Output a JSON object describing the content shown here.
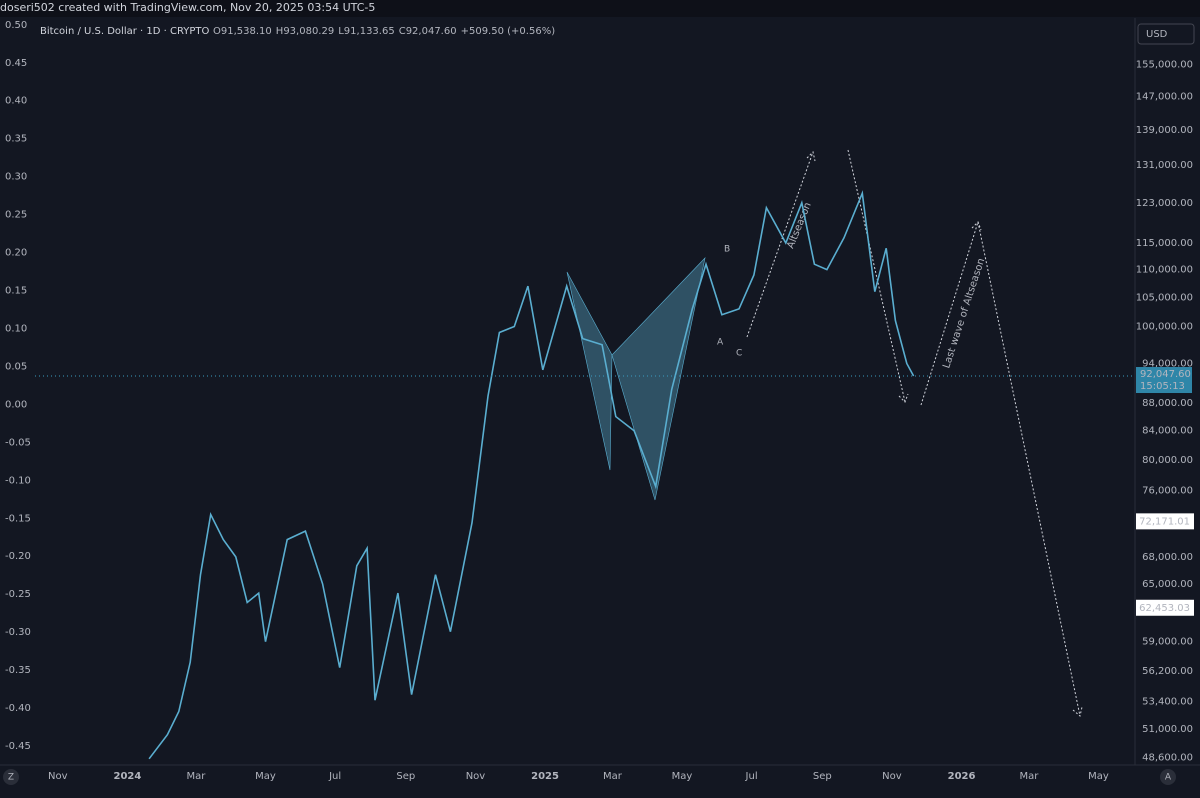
{
  "chart_data": {
    "type": "line",
    "credit": "doseri502 created with TradingView.com, Nov 20, 2025 03:54 UTC-5",
    "title": "Bitcoin / U.S. Dollar · 1D · CRYPTO",
    "ohlc": [
      {
        "name": "O",
        "value": "91,538.10"
      },
      {
        "name": "H",
        "value": "93,080.29"
      },
      {
        "name": "L",
        "value": "91,133.65"
      },
      {
        "name": "C",
        "value": "92,047.60"
      }
    ],
    "change": "+509.50 (+0.56%)",
    "currency": "USD",
    "log_scale": true,
    "x": [
      "2024-01-20",
      "2024-02-05",
      "2024-02-15",
      "2024-02-25",
      "2024-03-05",
      "2024-03-14",
      "2024-03-25",
      "2024-04-05",
      "2024-04-15",
      "2024-04-25",
      "2024-05-01",
      "2024-05-20",
      "2024-06-05",
      "2024-06-20",
      "2024-07-05",
      "2024-07-20",
      "2024-07-29",
      "2024-08-05",
      "2024-08-25",
      "2024-09-06",
      "2024-09-27",
      "2024-10-10",
      "2024-10-29",
      "2024-11-12",
      "2024-11-22",
      "2024-12-05",
      "2024-12-17",
      "2024-12-30",
      "2025-01-20",
      "2025-02-03",
      "2025-02-20",
      "2025-03-04",
      "2025-03-20",
      "2025-04-08",
      "2025-04-22",
      "2025-05-10",
      "2025-05-22",
      "2025-06-05",
      "2025-06-20",
      "2025-07-03",
      "2025-07-14",
      "2025-07-31",
      "2025-08-14",
      "2025-08-25",
      "2025-09-05",
      "2025-09-20",
      "2025-10-06",
      "2025-10-17",
      "2025-10-27",
      "2025-11-04",
      "2025-11-14",
      "2025-11-20"
    ],
    "series": [
      {
        "name": "Bitcoin / U.S. Dollar",
        "color": "#5aaed0",
        "values": [
          48500,
          50500,
          52500,
          57000,
          66000,
          73000,
          70000,
          68000,
          63000,
          64000,
          59000,
          70000,
          71000,
          65000,
          56500,
          67000,
          69000,
          53500,
          64000,
          54000,
          66000,
          60000,
          72000,
          89000,
          99000,
          100000,
          107000,
          93000,
          107000,
          98000,
          97000,
          86000,
          84000,
          76500,
          90000,
          103000,
          111000,
          102000,
          103000,
          109000,
          122000,
          115000,
          123000,
          111000,
          110000,
          116000,
          125000,
          106000,
          114000,
          101000,
          94000,
          92047.6
        ]
      }
    ],
    "last_price": {
      "value": 92047.6,
      "label": "92,047.60"
    },
    "countdown": "15:05:13",
    "price_marks": [
      {
        "value": 72171.01,
        "label": "72,171.01"
      },
      {
        "value": 62453.03,
        "label": "62,453.03"
      }
    ],
    "xlim": [
      "2023-10-12",
      "2026-06-02"
    ],
    "xticks": [
      {
        "value": "2023-11-01",
        "label": "Nov"
      },
      {
        "value": "2024-01-01",
        "label": "2024"
      },
      {
        "value": "2024-03-01",
        "label": "Mar"
      },
      {
        "value": "2024-05-01",
        "label": "May"
      },
      {
        "value": "2024-07-01",
        "label": "Jul"
      },
      {
        "value": "2024-09-01",
        "label": "Sep"
      },
      {
        "value": "2024-11-01",
        "label": "Nov"
      },
      {
        "value": "2025-01-01",
        "label": "2025"
      },
      {
        "value": "2025-03-01",
        "label": "Mar"
      },
      {
        "value": "2025-05-01",
        "label": "May"
      },
      {
        "value": "2025-07-01",
        "label": "Jul"
      },
      {
        "value": "2025-09-01",
        "label": "Sep"
      },
      {
        "value": "2025-11-01",
        "label": "Nov"
      },
      {
        "value": "2026-01-01",
        "label": "2026"
      },
      {
        "value": "2026-03-01",
        "label": "Mar"
      },
      {
        "value": "2026-05-01",
        "label": "May"
      }
    ],
    "ylim": [
      48000,
      167600
    ],
    "yticks": [
      {
        "value": 155000,
        "label": "155,000.00"
      },
      {
        "value": 147000,
        "label": "147,000.00"
      },
      {
        "value": 139000,
        "label": "139,000.00"
      },
      {
        "value": 131000,
        "label": "131,000.00"
      },
      {
        "value": 123000,
        "label": "123,000.00"
      },
      {
        "value": 115000,
        "label": "115,000.00"
      },
      {
        "value": 110000,
        "label": "110,000.00"
      },
      {
        "value": 105000,
        "label": "105,000.00"
      },
      {
        "value": 100000,
        "label": "100,000.00"
      },
      {
        "value": 94000,
        "label": "94,000.00"
      },
      {
        "value": 88000,
        "label": "88,000.00"
      },
      {
        "value": 84000,
        "label": "84,000.00"
      },
      {
        "value": 80000,
        "label": "80,000.00"
      },
      {
        "value": 76000,
        "label": "76,000.00"
      },
      {
        "value": 68000,
        "label": "68,000.00"
      },
      {
        "value": 65000,
        "label": "65,000.00"
      },
      {
        "value": 59000,
        "label": "59,000.00"
      },
      {
        "value": 56200,
        "label": "56,200.00"
      },
      {
        "value": 53400,
        "label": "53,400.00"
      },
      {
        "value": 51000,
        "label": "51,000.00"
      },
      {
        "value": 48600,
        "label": "48,600.00"
      }
    ],
    "y2lim": [
      -0.475,
      0.509
    ],
    "y2ticks": [
      {
        "value": 0.5,
        "label": "0.50"
      },
      0.45,
      {
        "value": 0.4,
        "label": "0.40"
      },
      0.35,
      {
        "value": 0.3,
        "label": "0.30"
      },
      0.25,
      {
        "value": 0.2,
        "label": "0.20"
      },
      0.15,
      {
        "value": 0.1,
        "label": "0.10"
      },
      0.05,
      {
        "value": 0,
        "label": "0.00"
      },
      -0.05,
      {
        "value": -0.1,
        "label": "-0.10"
      },
      -0.15,
      {
        "value": -0.2,
        "label": "-0.20"
      },
      -0.25,
      {
        "value": -0.3,
        "label": "-0.30"
      },
      -0.35,
      {
        "value": -0.4,
        "label": "-0.40"
      },
      -0.45
    ],
    "annotations": [
      "A",
      "B",
      "C",
      "Altseason",
      "Last wave of Altseason"
    ],
    "corner_buttons": [
      "Z",
      "A"
    ]
  }
}
